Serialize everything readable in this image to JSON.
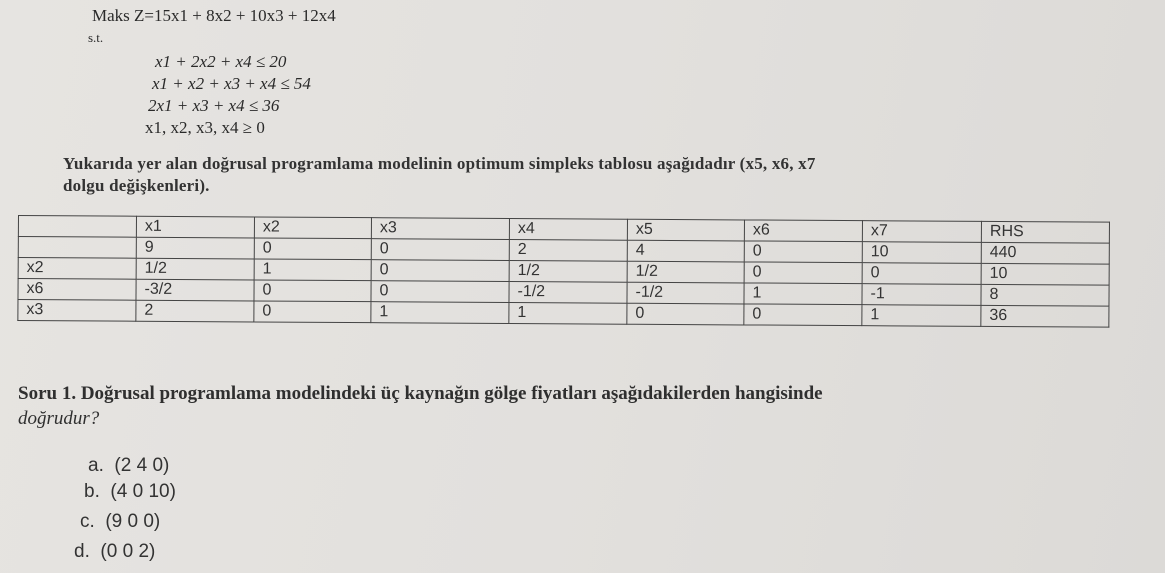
{
  "model": {
    "objective": "Maks Z=15x1 + 8x2 + 10x3 + 12x4",
    "st": "s.t.",
    "constraints": [
      "x1 + 2x2 + x4 ≤ 20",
      "x1 + x2 + x3 + x4 ≤ 54",
      "2x1 + x3 + x4 ≤ 36",
      "x1, x2, x3, x4 ≥ 0"
    ]
  },
  "intro": [
    "Yukarıda yer alan doğrusal programlama modelinin optimum simpleks tablosu aşağıdadır (x5, x6, x7",
    "dolgu değişkenleri)."
  ],
  "table": {
    "headers": [
      "",
      "x1",
      "x2",
      "x3",
      "x4",
      "x5",
      "x6",
      "x7",
      "RHS"
    ],
    "rows": [
      [
        "",
        "9",
        "0",
        "0",
        "2",
        "4",
        "0",
        "10",
        "440"
      ],
      [
        "x2",
        "1/2",
        "1",
        "0",
        "1/2",
        "1/2",
        "0",
        "0",
        "10"
      ],
      [
        "x6",
        "-3/2",
        "0",
        "0",
        "-1/2",
        "-1/2",
        "1",
        "-1",
        "8"
      ],
      [
        "x3",
        "2",
        "0",
        "1",
        "1",
        "0",
        "0",
        "1",
        "36"
      ]
    ]
  },
  "question": {
    "label": "Soru 1.",
    "text1": " Doğrusal programlama modelindeki üç kaynağın gölge fiyatları aşağıdakilerden hangisinde",
    "text2": "doğrudur?",
    "options": [
      {
        "letter": "a.",
        "text": "(2 4 0)"
      },
      {
        "letter": "b.",
        "text": "(4 0 10)"
      },
      {
        "letter": "c.",
        "text": "(9 0 0)"
      },
      {
        "letter": "d.",
        "text": "(0 0 2)"
      }
    ]
  }
}
